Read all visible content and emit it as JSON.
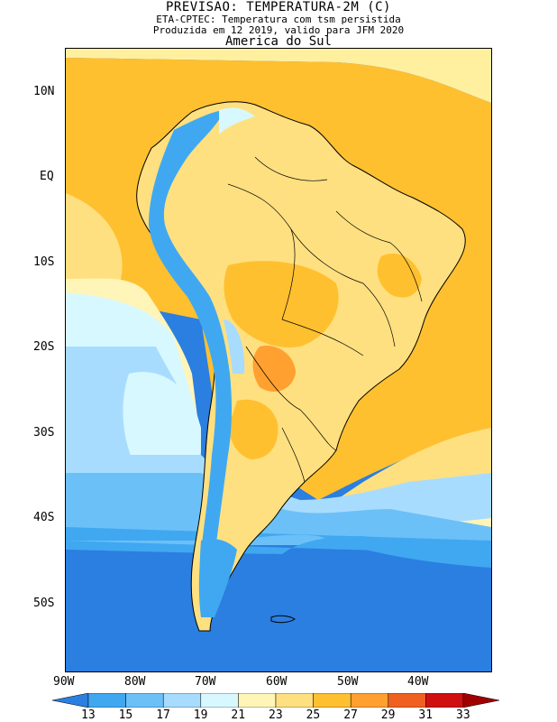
{
  "header": {
    "title": "PREVISAO: TEMPERATURA-2M (C)",
    "line2": "ETA-CPTEC: Temperatura com tsm persistida",
    "line3": "Produzida em 12 2019, valido para JFM 2020",
    "region": "America do Sul"
  },
  "axes": {
    "lat_labels": [
      "10N",
      "EQ",
      "10S",
      "20S",
      "30S",
      "40S",
      "50S"
    ],
    "lon_labels": [
      "90W",
      "80W",
      "70W",
      "60W",
      "50W",
      "40W"
    ]
  },
  "legend": {
    "levels": [
      "13",
      "15",
      "17",
      "19",
      "21",
      "23",
      "25",
      "27",
      "29",
      "31",
      "33"
    ],
    "colors": [
      "#2a7fe0",
      "#40a8f0",
      "#6cc0f8",
      "#a8dcff",
      "#d8f8ff",
      "#fff5b8",
      "#ffe080",
      "#ffc030",
      "#ffa030",
      "#f06020",
      "#d01010",
      "#a00000"
    ]
  },
  "map": {
    "ocean_bands": [
      "#fff0a0",
      "#ffc030",
      "#ffe080",
      "#d8f8ff",
      "#a8dcff",
      "#6cc0f8",
      "#40a8f0",
      "#2a7fe0"
    ]
  }
}
